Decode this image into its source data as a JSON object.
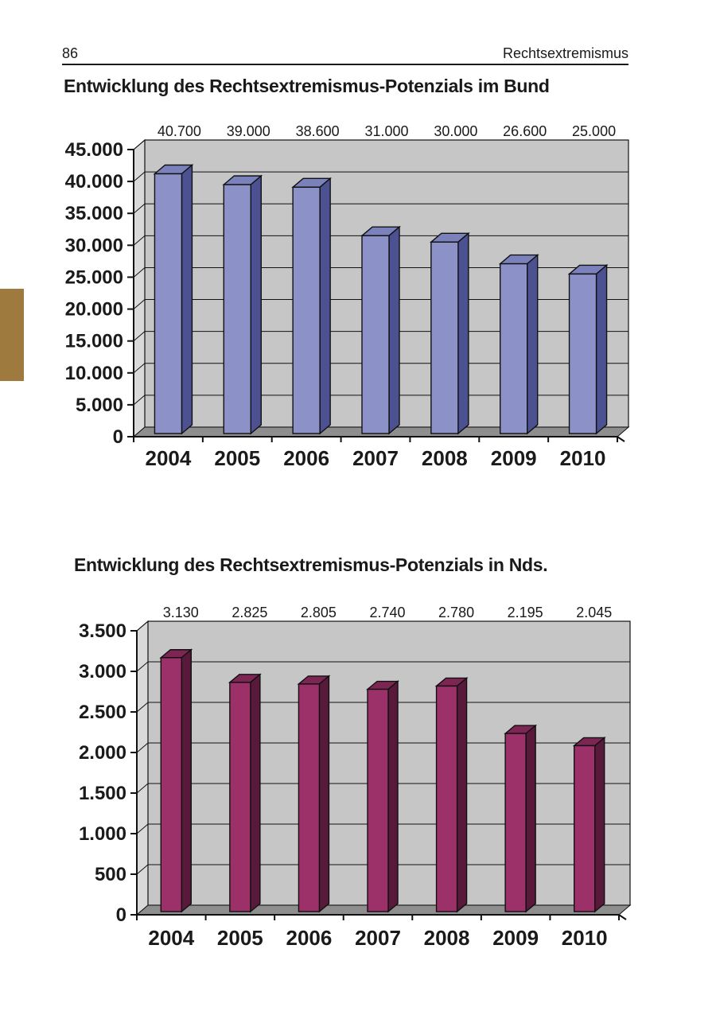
{
  "page_header": {
    "page_number": "86",
    "section": "Rechtsextremismus"
  },
  "side_tab_color": "#9e7a3e",
  "chart_data": [
    {
      "type": "bar",
      "variant": "3d-column",
      "title": "Entwicklung des Rechtsextremismus-Potenzials im Bund",
      "categories": [
        "2004",
        "2005",
        "2006",
        "2007",
        "2008",
        "2009",
        "2010"
      ],
      "values": [
        40700,
        39000,
        38600,
        31000,
        30000,
        26600,
        25000
      ],
      "data_labels": [
        "40.700",
        "39.000",
        "38.600",
        "31.000",
        "30.000",
        "26.600",
        "25.000"
      ],
      "xlabel": "",
      "ylabel": "",
      "ylim": [
        0,
        45000
      ],
      "ytick_step": 5000,
      "ytick_labels": [
        "45.000",
        "40.000",
        "35.000",
        "30.000",
        "25.000",
        "20.000",
        "15.000",
        "10.000",
        "5.000",
        "0"
      ],
      "grid": true,
      "legend": null,
      "bar_colors": {
        "front": "#8c92c8",
        "top": "#7b82bb",
        "side": "#4c5291"
      },
      "plot_colors": {
        "back_wall": "#c6c6c6",
        "left_wall": "#d9d9d9",
        "floor": "#8e8e8e",
        "gridline": "#111111",
        "text": "#1a1a1a"
      }
    },
    {
      "type": "bar",
      "variant": "3d-column",
      "title": "Entwicklung des Rechtsextremismus-Potenzials in Nds.",
      "categories": [
        "2004",
        "2005",
        "2006",
        "2007",
        "2008",
        "2009",
        "2010"
      ],
      "values": [
        3130,
        2825,
        2805,
        2740,
        2780,
        2195,
        2045
      ],
      "data_labels": [
        "3.130",
        "2.825",
        "2.805",
        "2.740",
        "2.780",
        "2.195",
        "2.045"
      ],
      "xlabel": "",
      "ylabel": "",
      "ylim": [
        0,
        3500
      ],
      "ytick_step": 500,
      "ytick_labels": [
        "3.500",
        "3.000",
        "2.500",
        "2.000",
        "1.500",
        "1.000",
        "500",
        "0"
      ],
      "grid": true,
      "legend": null,
      "bar_colors": {
        "front": "#9c3068",
        "top": "#7d2653",
        "side": "#59193b"
      },
      "plot_colors": {
        "back_wall": "#c6c6c6",
        "left_wall": "#d9d9d9",
        "floor": "#8e8e8e",
        "gridline": "#111111",
        "text": "#1a1a1a"
      }
    }
  ]
}
